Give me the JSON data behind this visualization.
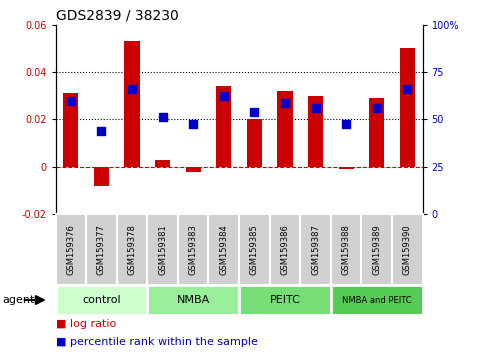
{
  "title": "GDS2839 / 38230",
  "samples": [
    "GSM159376",
    "GSM159377",
    "GSM159378",
    "GSM159381",
    "GSM159383",
    "GSM159384",
    "GSM159385",
    "GSM159386",
    "GSM159387",
    "GSM159388",
    "GSM159389",
    "GSM159390"
  ],
  "log_ratio": [
    0.031,
    -0.008,
    0.053,
    0.003,
    -0.002,
    0.034,
    0.02,
    0.032,
    0.03,
    -0.001,
    0.029,
    0.05
  ],
  "percentile_y": [
    0.028,
    0.015,
    0.033,
    0.021,
    0.018,
    0.03,
    0.023,
    0.027,
    0.025,
    0.018,
    0.025,
    0.033
  ],
  "bar_color": "#cc0000",
  "dot_color": "#0000cc",
  "ylim": [
    -0.02,
    0.06
  ],
  "y2lim": [
    0,
    100
  ],
  "yticks": [
    -0.02,
    0.0,
    0.02,
    0.04,
    0.06
  ],
  "ytick_labels": [
    "-0.02",
    "0",
    "0.02",
    "0.04",
    "0.06"
  ],
  "y2ticks": [
    0,
    25,
    50,
    75,
    100
  ],
  "y2tick_labels": [
    "0",
    "25",
    "50",
    "75",
    "100%"
  ],
  "dotted_lines": [
    0.02,
    0.04
  ],
  "zero_line_color": "#cc0000",
  "groups": [
    {
      "label": "control",
      "start": 0,
      "end": 3,
      "color": "#ccffcc"
    },
    {
      "label": "NMBA",
      "start": 3,
      "end": 6,
      "color": "#99ee99"
    },
    {
      "label": "PEITC",
      "start": 6,
      "end": 9,
      "color": "#77dd77"
    },
    {
      "label": "NMBA and PEITC",
      "start": 9,
      "end": 12,
      "color": "#55cc55"
    }
  ],
  "agent_label": "agent",
  "background_color": "#ffffff",
  "plot_bg_color": "#ffffff",
  "bar_width": 0.5,
  "dot_size": 30,
  "tick_label_fontsize": 7,
  "title_fontsize": 10,
  "group_label_fontsize": 8,
  "sample_fontsize": 6,
  "legend_fontsize": 8
}
